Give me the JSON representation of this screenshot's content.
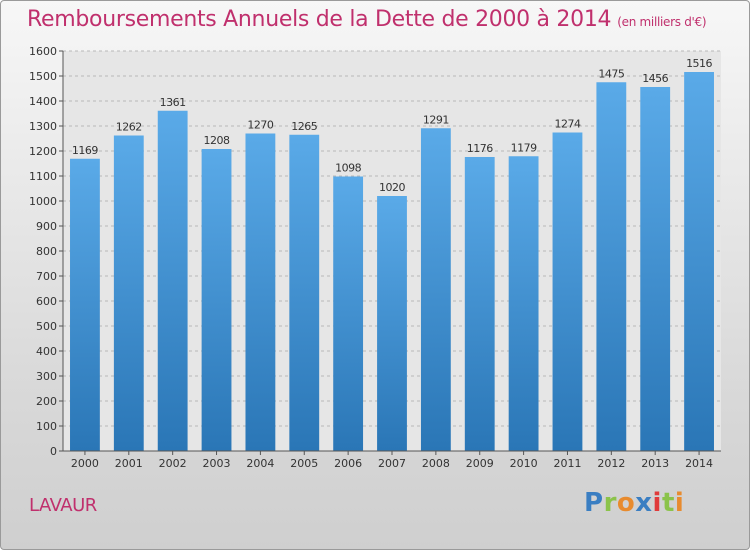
{
  "header": {
    "title": "Remboursements Annuels de la Dette de 2000 à 2014",
    "unit": "(en milliers d'€)"
  },
  "commune": "LAVAUR",
  "logo": {
    "text": "Proxiti",
    "letters": [
      {
        "char": "P",
        "color": "#3a7ec2"
      },
      {
        "char": "r",
        "color": "#8bc34a"
      },
      {
        "char": "o",
        "color": "#e88b2e"
      },
      {
        "char": "x",
        "color": "#3a7ec2"
      },
      {
        "char": "i",
        "color": "#e03a3a"
      },
      {
        "char": "t",
        "color": "#8bc34a"
      },
      {
        "char": "i",
        "color": "#e88b2e"
      }
    ]
  },
  "colors": {
    "accent": "#c0306d",
    "bar_top": "#5aaae8",
    "bar_bottom": "#2a76b6"
  },
  "chart_data": {
    "type": "bar",
    "title": "Remboursements Annuels de la Dette de 2000 à 2014",
    "categories": [
      "2000",
      "2001",
      "2002",
      "2003",
      "2004",
      "2005",
      "2006",
      "2007",
      "2008",
      "2009",
      "2010",
      "2011",
      "2012",
      "2013",
      "2014"
    ],
    "values": [
      1169,
      1262,
      1361,
      1208,
      1270,
      1265,
      1098,
      1020,
      1291,
      1176,
      1179,
      1274,
      1475,
      1456,
      1516
    ],
    "ylim": [
      0,
      1600
    ],
    "yticks": [
      0,
      100,
      200,
      300,
      400,
      500,
      600,
      700,
      800,
      900,
      1000,
      1100,
      1200,
      1300,
      1400,
      1500,
      1600
    ],
    "grid": true
  }
}
